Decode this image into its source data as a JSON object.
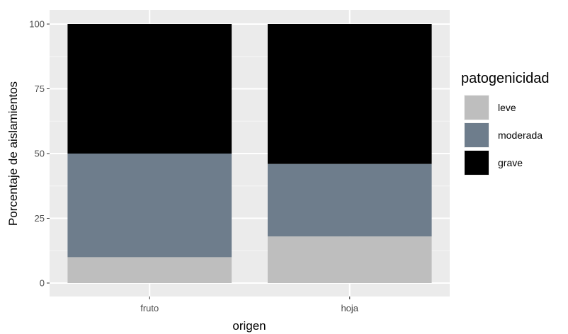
{
  "chart_data": {
    "type": "bar",
    "stacked": true,
    "categories": [
      "fruto",
      "hoja"
    ],
    "series": [
      {
        "name": "leve",
        "values": [
          10,
          18
        ],
        "color": "#bebebe"
      },
      {
        "name": "moderada",
        "values": [
          40,
          28
        ],
        "color": "#6e7d8c"
      },
      {
        "name": "grave",
        "values": [
          50,
          54
        ],
        "color": "#000000"
      }
    ],
    "xlabel": "origen",
    "ylabel": "Porcentaje de aislamientos",
    "ylim": [
      0,
      100
    ],
    "yticks": [
      "0",
      "25",
      "50",
      "75",
      "100"
    ],
    "grid": true,
    "panel_background": "#ebebeb",
    "legend": {
      "title": "patogenicidad",
      "position": "right"
    }
  }
}
